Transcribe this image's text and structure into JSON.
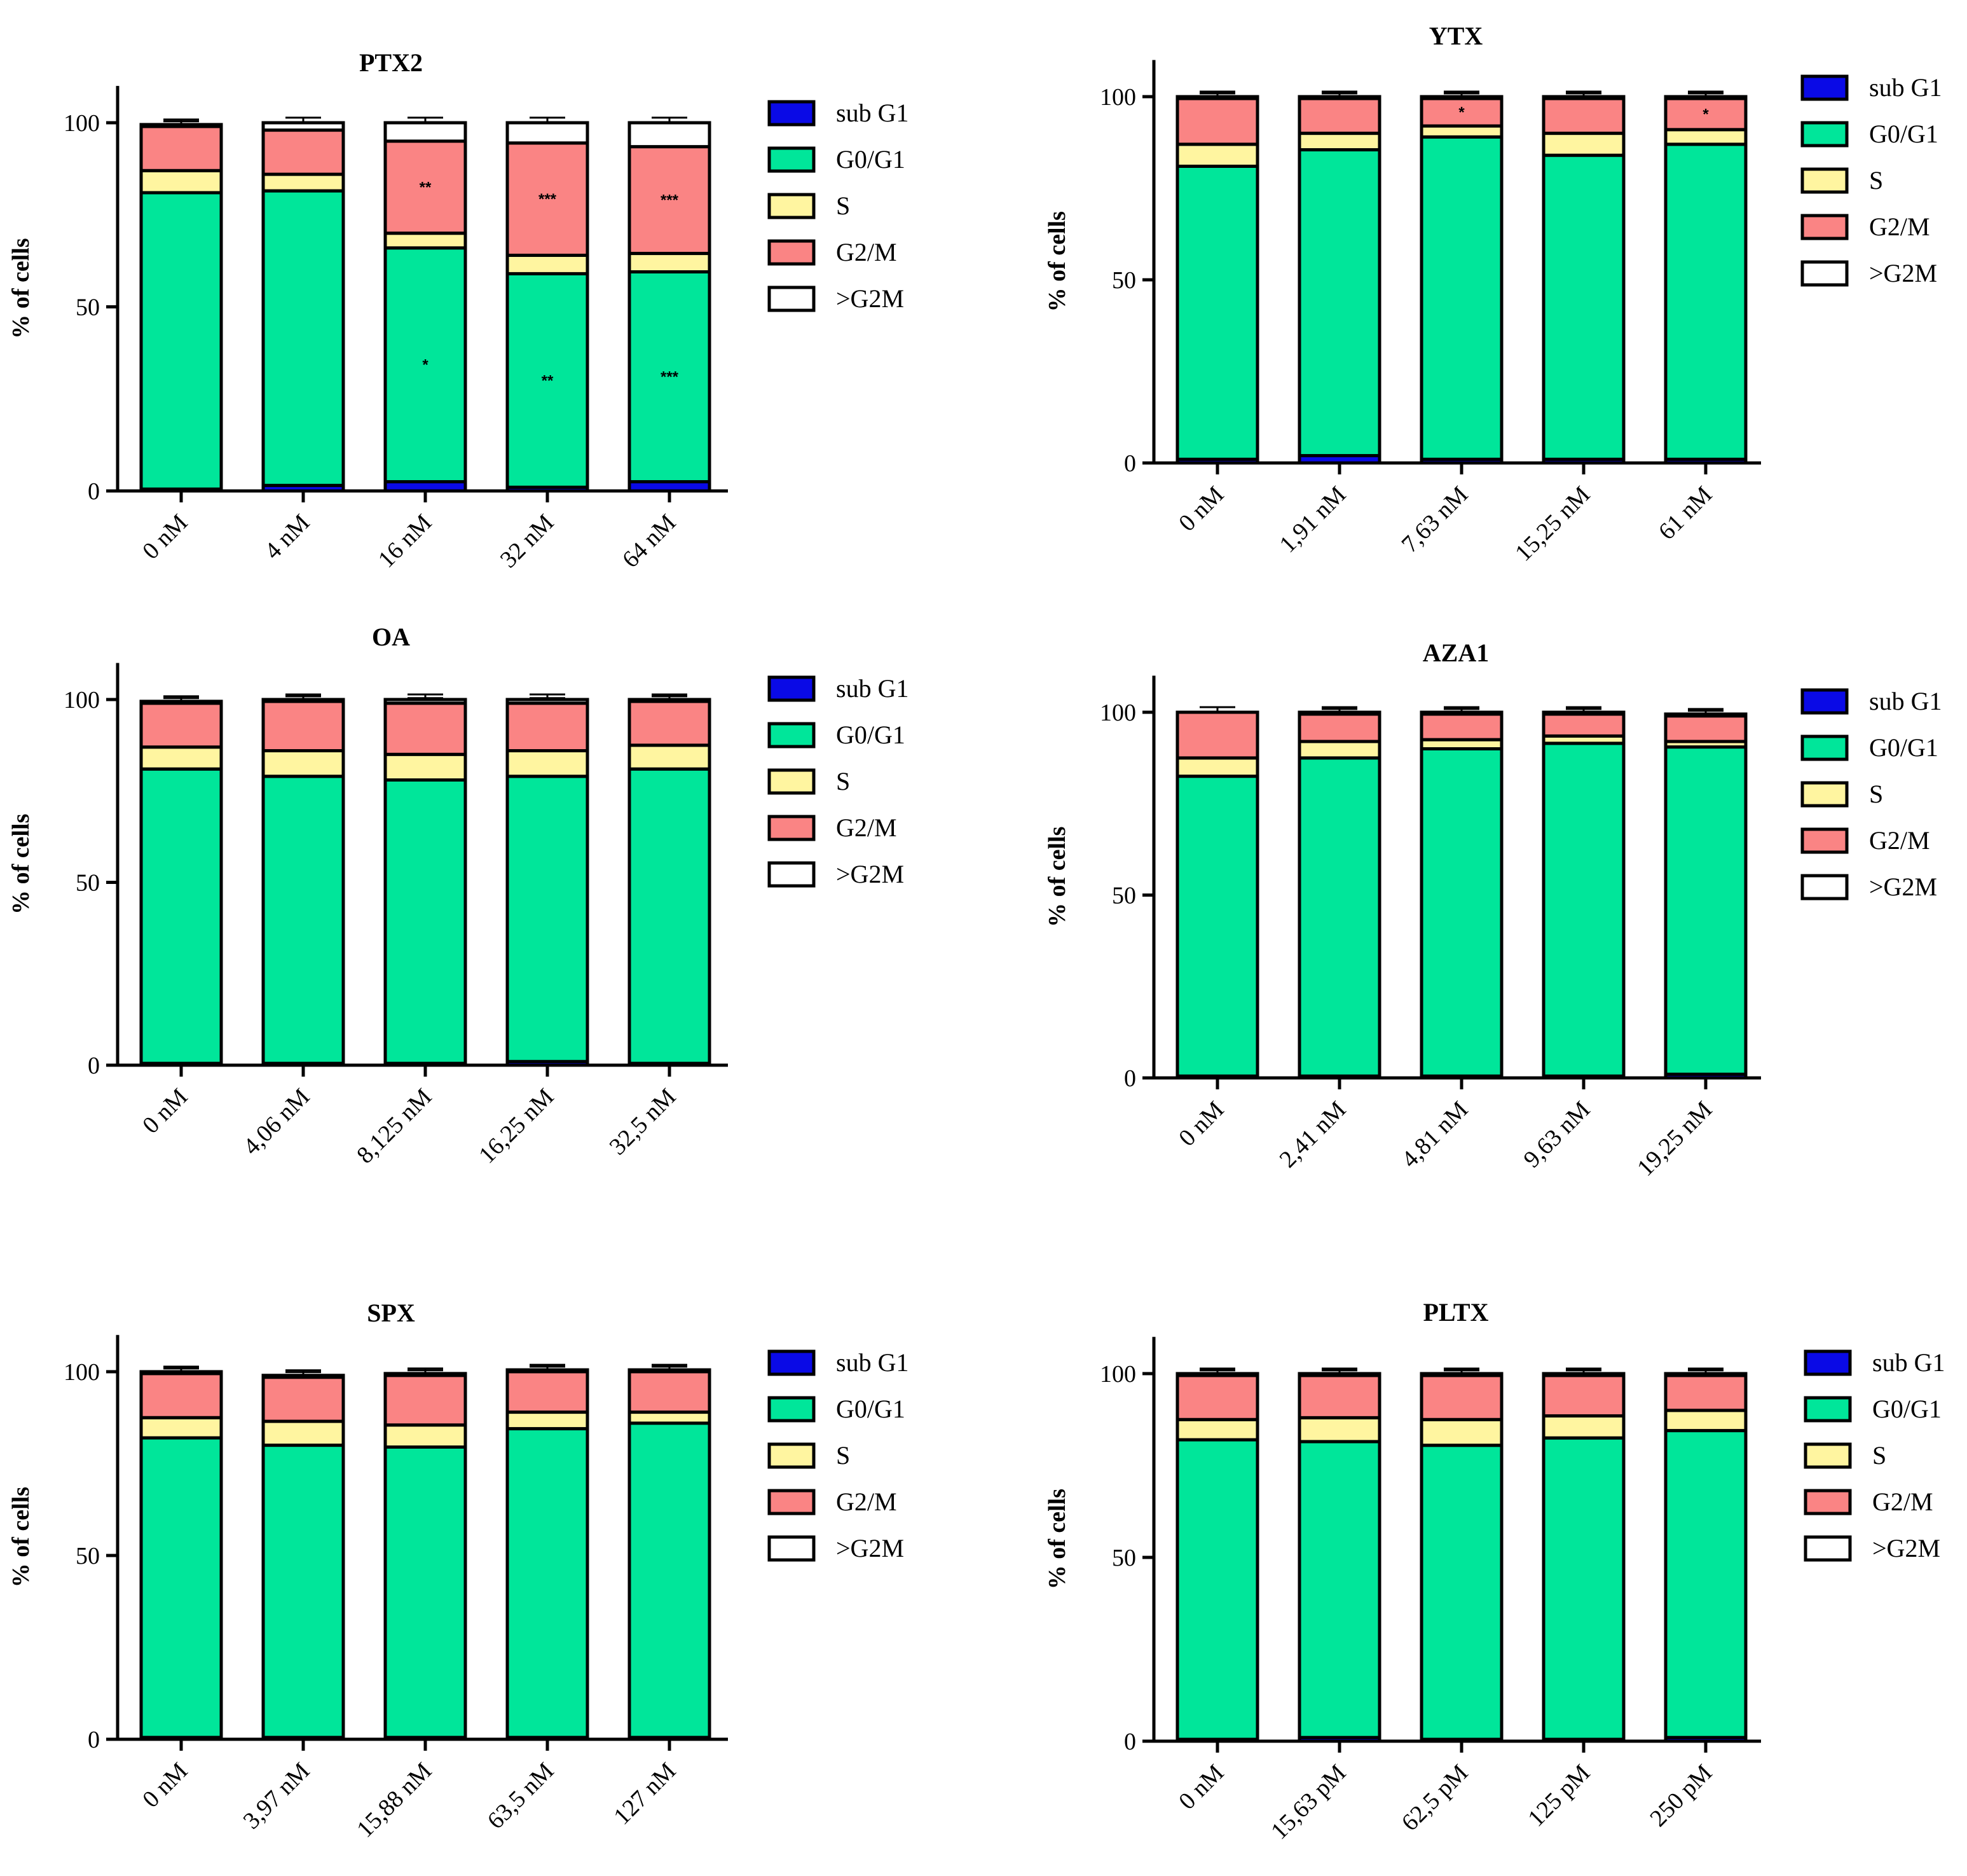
{
  "colors": {
    "sub G1": "#0a0ae6",
    "G0/G1": "#00e69a",
    "S": "#fff5a0",
    "G2/M": "#fa8484",
    ">G2M": "#ffffff",
    "outline": "#000000"
  },
  "chart_data": [
    {
      "type": "bar",
      "stacked": true,
      "title": "PTX2",
      "ylabel": "% of cells",
      "ylim": [
        0,
        110
      ],
      "yticks": [
        0,
        50,
        100
      ],
      "categories": [
        "0 nM",
        "4 nM",
        "16 nM",
        "32 nM",
        "64 nM"
      ],
      "legend": [
        "sub G1",
        "G0/G1",
        "S",
        "G2/M",
        ">G2M"
      ],
      "series": [
        {
          "name": "sub G1",
          "values": [
            0.5,
            1.5,
            2.5,
            1.0,
            2.5
          ]
        },
        {
          "name": "G0/G1",
          "values": [
            80.5,
            80.0,
            63.5,
            58.0,
            57.0
          ]
        },
        {
          "name": "S",
          "values": [
            6.0,
            4.5,
            4.0,
            5.0,
            5.0
          ]
        },
        {
          "name": "G2/M",
          "values": [
            12.0,
            12.0,
            25.0,
            30.5,
            29.0
          ]
        },
        {
          "name": ">G2M",
          "values": [
            0.5,
            2.0,
            5.0,
            5.5,
            6.5
          ]
        }
      ],
      "annotations": [
        {
          "category": "16 nM",
          "series": "G2/M",
          "text": "**"
        },
        {
          "category": "32 nM",
          "series": "G2/M",
          "text": "***"
        },
        {
          "category": "64 nM",
          "series": "G2/M",
          "text": "***"
        },
        {
          "category": "16 nM",
          "series": "G0/G1",
          "text": "*"
        },
        {
          "category": "32 nM",
          "series": "G0/G1",
          "text": "**"
        },
        {
          "category": "64 nM",
          "series": "G0/G1",
          "text": "***"
        }
      ]
    },
    {
      "type": "bar",
      "stacked": true,
      "title": "YTX",
      "ylabel": "% of cells",
      "ylim": [
        0,
        110
      ],
      "yticks": [
        0,
        50,
        100
      ],
      "categories": [
        "0 nM",
        "1,91 nM",
        "7,63 nM",
        "15,25 nM",
        "61 nM"
      ],
      "legend": [
        "sub G1",
        "G0/G1",
        "S",
        "G2/M",
        ">G2M"
      ],
      "series": [
        {
          "name": "sub G1",
          "values": [
            1.0,
            2.0,
            1.0,
            1.0,
            1.0
          ]
        },
        {
          "name": "G0/G1",
          "values": [
            80.0,
            83.5,
            88.0,
            83.0,
            86.0
          ]
        },
        {
          "name": "S",
          "values": [
            6.0,
            4.5,
            3.0,
            6.0,
            4.0
          ]
        },
        {
          "name": "G2/M",
          "values": [
            12.5,
            9.5,
            7.5,
            9.5,
            8.5
          ]
        },
        {
          "name": ">G2M",
          "values": [
            0.5,
            0.5,
            0.5,
            0.5,
            0.5
          ]
        }
      ],
      "annotations": [
        {
          "category": "7,63 nM",
          "series": "G2/M",
          "text": "*"
        },
        {
          "category": "61 nM",
          "series": "G2/M",
          "text": "*"
        }
      ]
    },
    {
      "type": "bar",
      "stacked": true,
      "title": "OA",
      "ylabel": "% of cells",
      "ylim": [
        0,
        110
      ],
      "yticks": [
        0,
        50,
        100
      ],
      "categories": [
        "0 nM",
        "4,06 nM",
        "8,125 nM",
        "16,25 nM",
        "32,5 nM"
      ],
      "legend": [
        "sub G1",
        "G0/G1",
        "S",
        "G2/M",
        ">G2M"
      ],
      "series": [
        {
          "name": "sub G1",
          "values": [
            0.5,
            0.5,
            0.5,
            1.0,
            0.5
          ]
        },
        {
          "name": "G0/G1",
          "values": [
            80.5,
            78.5,
            77.5,
            78.0,
            80.5
          ]
        },
        {
          "name": "S",
          "values": [
            6.0,
            7.0,
            7.0,
            7.0,
            6.5
          ]
        },
        {
          "name": "G2/M",
          "values": [
            12.0,
            13.5,
            14.0,
            13.0,
            12.0
          ]
        },
        {
          "name": ">G2M",
          "values": [
            0.5,
            0.5,
            1.0,
            1.0,
            0.5
          ]
        }
      ],
      "annotations": []
    },
    {
      "type": "bar",
      "stacked": true,
      "title": "AZA1",
      "ylabel": "% of cells",
      "ylim": [
        0,
        110
      ],
      "yticks": [
        0,
        50,
        100
      ],
      "categories": [
        "0 nM",
        "2,41 nM",
        "4,81 nM",
        "9,63 nM",
        "19,25 nM"
      ],
      "legend": [
        "sub G1",
        "G0/G1",
        "S",
        "G2/M",
        ">G2M"
      ],
      "series": [
        {
          "name": "sub G1",
          "values": [
            0.5,
            0.5,
            0.5,
            0.5,
            1.0
          ]
        },
        {
          "name": "G0/G1",
          "values": [
            82.0,
            87.0,
            89.5,
            91.0,
            89.5
          ]
        },
        {
          "name": "S",
          "values": [
            5.0,
            4.5,
            2.5,
            2.0,
            1.5
          ]
        },
        {
          "name": "G2/M",
          "values": [
            12.5,
            7.5,
            7.0,
            6.0,
            7.0
          ]
        },
        {
          "name": ">G2M",
          "values": [
            0.0,
            0.5,
            0.5,
            0.5,
            0.5
          ]
        }
      ],
      "annotations": []
    },
    {
      "type": "bar",
      "stacked": true,
      "title": "SPX",
      "ylabel": "% of cells",
      "ylim": [
        0,
        110
      ],
      "yticks": [
        0,
        50,
        100
      ],
      "categories": [
        "0 nM",
        "3,97 nM",
        "15,88 nM",
        "63,5 nM",
        "127 nM"
      ],
      "legend": [
        "sub G1",
        "G0/G1",
        "S",
        "G2/M",
        ">G2M"
      ],
      "series": [
        {
          "name": "sub G1",
          "values": [
            0.5,
            0.5,
            0.5,
            0.5,
            0.5
          ]
        },
        {
          "name": "G0/G1",
          "values": [
            81.5,
            79.5,
            79.0,
            84.0,
            85.5
          ]
        },
        {
          "name": "S",
          "values": [
            5.5,
            6.5,
            6.0,
            4.5,
            3.0
          ]
        },
        {
          "name": "G2/M",
          "values": [
            12.0,
            12.0,
            13.5,
            11.0,
            11.0
          ]
        },
        {
          "name": ">G2M",
          "values": [
            0.5,
            0.5,
            0.5,
            0.5,
            0.5
          ]
        }
      ],
      "annotations": []
    },
    {
      "type": "bar",
      "stacked": true,
      "title": "PLTX",
      "ylabel": "% of cells",
      "ylim": [
        0,
        110
      ],
      "yticks": [
        0,
        50,
        100
      ],
      "categories": [
        "0 nM",
        "15,63 pM",
        "62,5 pM",
        "125 pM",
        "250 pM"
      ],
      "legend": [
        "sub G1",
        "G0/G1",
        "S",
        "G2/M",
        ">G2M"
      ],
      "series": [
        {
          "name": "sub G1",
          "values": [
            0.5,
            1.0,
            0.5,
            0.5,
            1.0
          ]
        },
        {
          "name": "G0/G1",
          "values": [
            81.5,
            80.5,
            80.0,
            82.0,
            83.5
          ]
        },
        {
          "name": "S",
          "values": [
            5.5,
            6.5,
            7.0,
            6.0,
            5.5
          ]
        },
        {
          "name": "G2/M",
          "values": [
            12.0,
            11.5,
            12.0,
            11.0,
            9.5
          ]
        },
        {
          "name": ">G2M",
          "values": [
            0.5,
            0.5,
            0.5,
            0.5,
            0.5
          ]
        }
      ],
      "annotations": []
    }
  ]
}
